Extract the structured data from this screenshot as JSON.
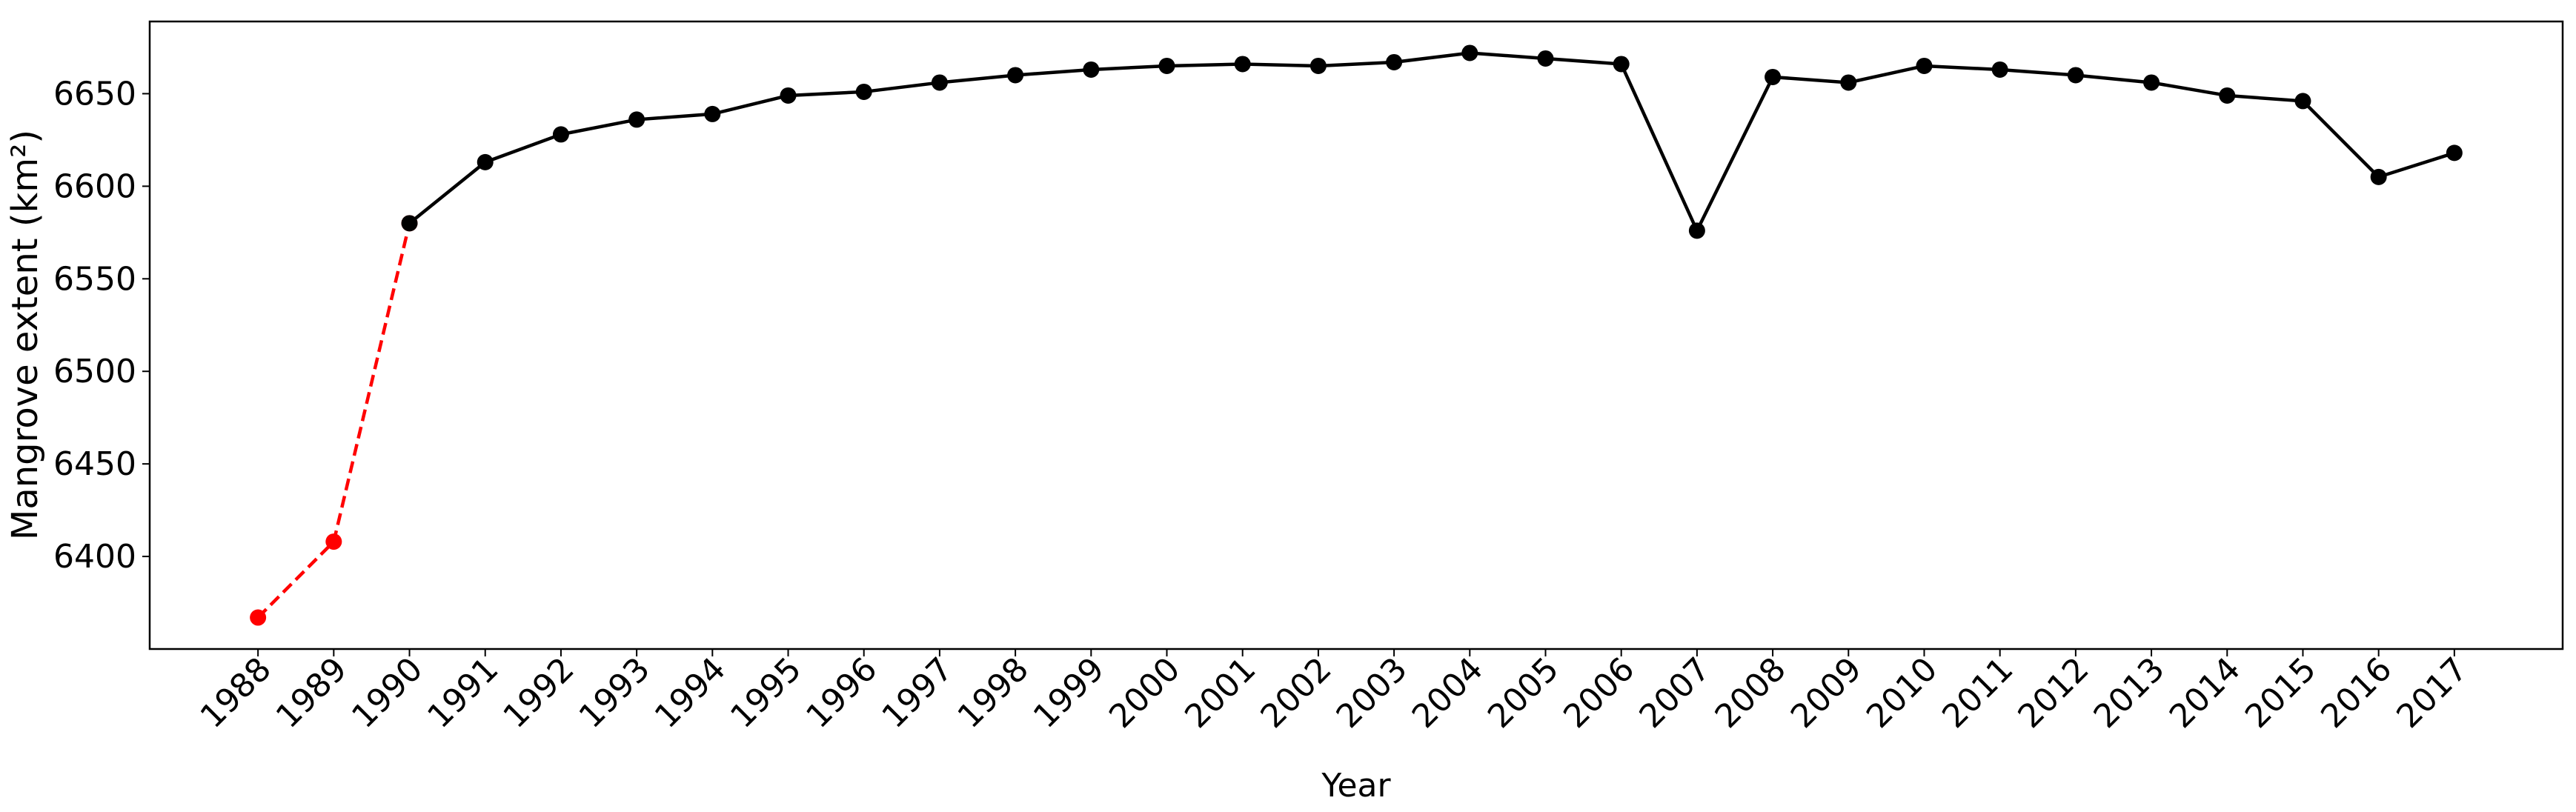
{
  "chart_data": {
    "type": "line",
    "xlabel": "Year",
    "ylabel": "Mangrove extent (km²)",
    "x": [
      1988,
      1989,
      1990,
      1991,
      1992,
      1993,
      1994,
      1995,
      1996,
      1997,
      1998,
      1999,
      2000,
      2001,
      2002,
      2003,
      2004,
      2005,
      2006,
      2007,
      2008,
      2009,
      2010,
      2011,
      2012,
      2013,
      2014,
      2015,
      2016,
      2017
    ],
    "series": [
      {
        "color": "#ff0000",
        "style": "dashed",
        "values": [
          6367,
          6408,
          6580,
          null,
          null,
          null,
          null,
          null,
          null,
          null,
          null,
          null,
          null,
          null,
          null,
          null,
          null,
          null,
          null,
          null,
          null,
          null,
          null,
          null,
          null,
          null,
          null,
          null,
          null,
          null
        ]
      },
      {
        "color": "#000000",
        "style": "solid",
        "values": [
          null,
          null,
          6580,
          6613,
          6628,
          6636,
          6639,
          6649,
          6651,
          6656,
          6660,
          6663,
          6665,
          6666,
          6665,
          6667,
          6672,
          6669,
          6666,
          6576,
          6659,
          6656,
          6665,
          6663,
          6660,
          6656,
          6649,
          6646,
          6605,
          6618
        ]
      }
    ],
    "xlim": [
      1986.57,
      2018.43
    ],
    "ylim": [
      6350,
      6689
    ],
    "xticks": [
      1988,
      1989,
      1990,
      1991,
      1992,
      1993,
      1994,
      1995,
      1996,
      1997,
      1998,
      1999,
      2000,
      2001,
      2002,
      2003,
      2004,
      2005,
      2006,
      2007,
      2008,
      2009,
      2010,
      2011,
      2012,
      2013,
      2014,
      2015,
      2016,
      2017
    ],
    "yticks": [
      6400,
      6450,
      6500,
      6550,
      6600,
      6650
    ],
    "grid": false
  }
}
